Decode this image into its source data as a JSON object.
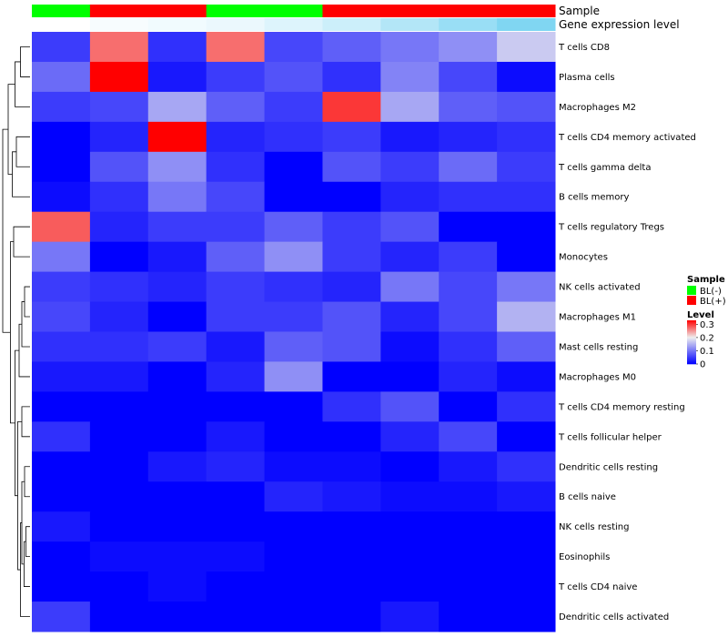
{
  "chart_data": {
    "type": "heatmap",
    "columns": 9,
    "rows": [
      {
        "label": "T cells CD8",
        "values": [
          0.05,
          0.27,
          0.04,
          0.27,
          0.06,
          0.08,
          0.1,
          0.12,
          0.17
        ]
      },
      {
        "label": "Plasma cells",
        "values": [
          0.09,
          0.33,
          0.02,
          0.05,
          0.07,
          0.04,
          0.11,
          0.06,
          0.01
        ]
      },
      {
        "label": "Macrophages M2",
        "values": [
          0.05,
          0.06,
          0.14,
          0.08,
          0.05,
          0.3,
          0.14,
          0.08,
          0.07
        ]
      },
      {
        "label": "T cells CD4 memory activated",
        "values": [
          0.0,
          0.03,
          0.33,
          0.03,
          0.04,
          0.05,
          0.02,
          0.03,
          0.04
        ]
      },
      {
        "label": "T cells gamma delta",
        "values": [
          0.0,
          0.07,
          0.12,
          0.04,
          0.0,
          0.07,
          0.05,
          0.09,
          0.05
        ]
      },
      {
        "label": "B cells memory",
        "values": [
          0.01,
          0.04,
          0.1,
          0.06,
          0.0,
          0.0,
          0.03,
          0.04,
          0.04
        ]
      },
      {
        "label": "T cells regulatory  Tregs",
        "values": [
          0.28,
          0.03,
          0.05,
          0.05,
          0.08,
          0.05,
          0.07,
          0.0,
          0.0
        ]
      },
      {
        "label": "Monocytes",
        "values": [
          0.1,
          0.0,
          0.02,
          0.08,
          0.12,
          0.05,
          0.03,
          0.05,
          0.0
        ]
      },
      {
        "label": "NK cells activated",
        "values": [
          0.05,
          0.04,
          0.03,
          0.05,
          0.04,
          0.03,
          0.1,
          0.06,
          0.1
        ]
      },
      {
        "label": "Macrophages M1",
        "values": [
          0.06,
          0.03,
          0.0,
          0.05,
          0.05,
          0.07,
          0.03,
          0.06,
          0.15
        ]
      },
      {
        "label": "Mast cells resting",
        "values": [
          0.04,
          0.04,
          0.05,
          0.02,
          0.08,
          0.07,
          0.01,
          0.04,
          0.08
        ]
      },
      {
        "label": "Macrophages M0",
        "values": [
          0.02,
          0.02,
          0.0,
          0.03,
          0.12,
          0.0,
          0.0,
          0.03,
          0.01
        ]
      },
      {
        "label": "T cells CD4 memory resting",
        "values": [
          0.0,
          0.0,
          0.0,
          0.0,
          0.0,
          0.04,
          0.07,
          0.0,
          0.04
        ]
      },
      {
        "label": "T cells follicular helper",
        "values": [
          0.04,
          0.0,
          0.0,
          0.02,
          0.0,
          0.0,
          0.03,
          0.06,
          0.0
        ]
      },
      {
        "label": "Dendritic cells resting",
        "values": [
          0.0,
          0.0,
          0.02,
          0.03,
          0.01,
          0.01,
          0.0,
          0.02,
          0.04
        ]
      },
      {
        "label": "B cells naive",
        "values": [
          0.0,
          0.0,
          0.0,
          0.0,
          0.03,
          0.02,
          0.01,
          0.01,
          0.02
        ]
      },
      {
        "label": "NK cells resting",
        "values": [
          0.02,
          0.0,
          0.0,
          0.0,
          0.0,
          0.0,
          0.0,
          0.0,
          0.0
        ]
      },
      {
        "label": "Eosinophils",
        "values": [
          0.0,
          0.01,
          0.01,
          0.01,
          0.0,
          0.0,
          0.0,
          0.0,
          0.0
        ]
      },
      {
        "label": "T cells CD4 naive",
        "values": [
          0.0,
          0.0,
          0.01,
          0.0,
          0.0,
          0.0,
          0.0,
          0.0,
          0.0
        ]
      },
      {
        "label": "Dendritic cells activated",
        "values": [
          0.05,
          0.0,
          0.0,
          0.0,
          0.0,
          0.0,
          0.02,
          0.0,
          0.0
        ]
      }
    ],
    "annotations": [
      {
        "label": "Sample",
        "values": [
          "BL(-)",
          "BL(+)",
          "BL(+)",
          "BL(-)",
          "BL(-)",
          "BL(+)",
          "BL(+)",
          "BL(+)",
          "BL(+)"
        ]
      },
      {
        "label": "Gene expression level",
        "values": [
          0.0,
          0.05,
          0.08,
          0.12,
          0.2,
          0.3,
          0.45,
          0.6,
          0.75
        ]
      }
    ],
    "sample_legend": {
      "title": "Sample",
      "items": [
        {
          "label": "BL(-)",
          "color": "#00ff00"
        },
        {
          "label": "BL(+)",
          "color": "#ff0000"
        }
      ]
    },
    "color_legend": {
      "title": "Level",
      "min": 0,
      "mid": 0.2,
      "max": 0.33,
      "ticks": [
        0.3,
        0.2,
        0.1,
        0
      ],
      "tick_labels": [
        "0.3",
        "0.2",
        "0.1",
        "0"
      ],
      "colors": {
        "low": "#0000ff",
        "mid": "#eeeeee",
        "high": "#ff0000"
      }
    },
    "gene_expr_colors": {
      "low": "#ffffff",
      "high": "#55c8ee"
    },
    "dendrogram": {
      "leaves": 20,
      "merges": [
        [
          0,
          1,
          0.35
        ],
        [
          20,
          2,
          0.55
        ],
        [
          3,
          4,
          0.5
        ],
        [
          22,
          5,
          0.65
        ],
        [
          21,
          23,
          0.8
        ],
        [
          6,
          7,
          0.6
        ],
        [
          8,
          9,
          0.2
        ],
        [
          26,
          10,
          0.3
        ],
        [
          27,
          11,
          0.4
        ],
        [
          12,
          13,
          0.3
        ],
        [
          14,
          15,
          0.2
        ],
        [
          16,
          17,
          0.15
        ],
        [
          31,
          18,
          0.22
        ],
        [
          30,
          32,
          0.3
        ],
        [
          33,
          19,
          0.35
        ],
        [
          29,
          34,
          0.45
        ],
        [
          28,
          35,
          0.55
        ],
        [
          25,
          36,
          0.72
        ],
        [
          24,
          37,
          1.0
        ]
      ]
    }
  }
}
